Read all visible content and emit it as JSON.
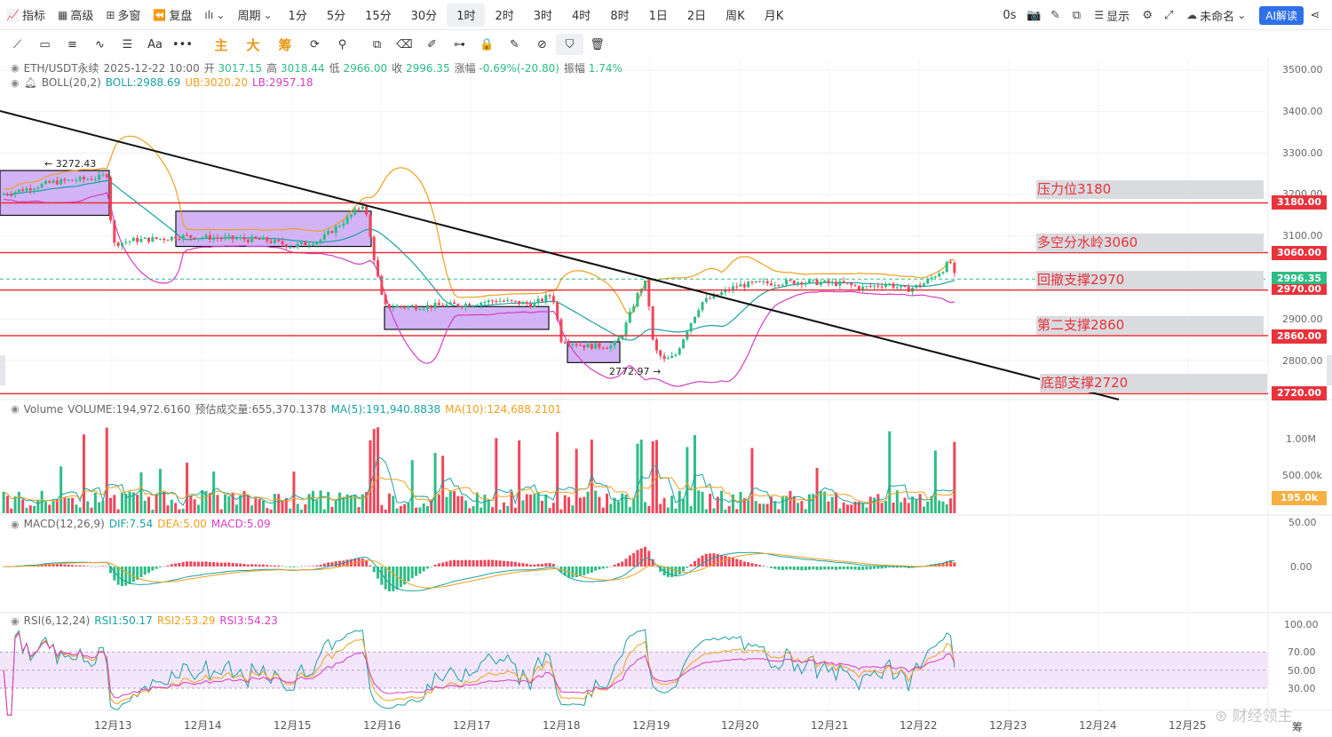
{
  "toolbar": {
    "indicators": "指标",
    "advanced": "高级",
    "multi_window": "多窗",
    "replay": "复盘",
    "period": "周期",
    "timeframes": [
      "1分",
      "5分",
      "15分",
      "30分",
      "1时",
      "2时",
      "3时",
      "4时",
      "8时",
      "1日",
      "2日",
      "周K",
      "月K"
    ],
    "active_timeframe": "1时",
    "countdown": "0s",
    "display": "显示",
    "unnamed": "未命名",
    "ai_button": "AI解读"
  },
  "draw_toolbar": {
    "font_tool": "Aa",
    "more": "•••",
    "main_label": "主",
    "big_label": "大",
    "chip_label": "筹"
  },
  "main_legend": {
    "symbol": "ETH/USDT永续",
    "datetime": "2025-12-22 10:00",
    "open_label": "开",
    "open": "3017.15",
    "high_label": "高",
    "high": "3018.44",
    "low_label": "低",
    "low": "2966.00",
    "close_label": "收",
    "close": "2996.35",
    "change_label": "涨幅",
    "change": "-0.69%(-20.80)",
    "amp_label": "振幅",
    "amp": "1.74%"
  },
  "boll_legend": {
    "name": "BOLL(20,2)",
    "boll": "BOLL:2988.69",
    "ub": "UB:3020.20",
    "lb": "LB:2957.18"
  },
  "volume_legend": {
    "name": "Volume",
    "volume": "VOLUME:194,972.6160",
    "est": "预估成交量:655,370.1378",
    "ma5": "MA(5):191,940.8838",
    "ma10": "MA(10):124,688.2101"
  },
  "macd_legend": {
    "name": "MACD(12,26,9)",
    "dif": "DIF:7.54",
    "dea": "DEA:5.00",
    "macd": "MACD:5.09"
  },
  "rsi_legend": {
    "name": "RSI(6,12,24)",
    "rsi1": "RSI1:50.17",
    "rsi2": "RSI2:53.29",
    "rsi3": "RSI3:54.23"
  },
  "levels": {
    "resistance": "压力位3180",
    "pivot": "多空分水岭3060",
    "pullback": "回撤支撑2970",
    "second": "第二支撑2860",
    "bottom": "底部支撑2720"
  },
  "price_tags": {
    "p3180": "3180.00",
    "p3060": "3060.00",
    "current": "2996.35",
    "p2970": "2970.00",
    "p2860": "2860.00",
    "p2720": "2720.00",
    "vol": "195.0k"
  },
  "price_axis": [
    "3500.00",
    "3400.00",
    "3300.00",
    "3200.00",
    "3100.00",
    "2900.00",
    "2800.00"
  ],
  "volume_axis": [
    "1.00M",
    "500.00k"
  ],
  "macd_axis": [
    "50.00",
    "0.00"
  ],
  "rsi_axis": [
    "100.00",
    "70.00",
    "50.00",
    "30.00"
  ],
  "dates": [
    "12月13",
    "12月14",
    "12月15",
    "12月16",
    "12月17",
    "12月18",
    "12月19",
    "12月20",
    "12月21",
    "12月22",
    "12月23",
    "12月24",
    "12月25"
  ],
  "annotations": {
    "high": "← 3272.43",
    "low": "2772.97 →"
  },
  "watermark": "财经领主",
  "corner": "筹",
  "colors": {
    "up": "#2ebd85",
    "down": "#f0465a",
    "level": "#e8323c",
    "boll_mid": "#1aa2a2",
    "boll_ub": "#f0a01e",
    "boll_lb": "#d63cc3",
    "box": "#c9a6f5",
    "current": "#2ebd85",
    "accent": "#2f6fe8"
  },
  "chart_data": {
    "type": "candlestick",
    "symbol": "ETH/USDT永续",
    "interval": "1时",
    "y_range": [
      2700,
      3520
    ],
    "key_levels": [
      3180,
      3060,
      2970,
      2860,
      2720
    ],
    "current_price": 2996.35,
    "annotated_high": 3272.43,
    "annotated_low": 2772.97,
    "close_path_approx": [
      {
        "x": "12月12 12:00",
        "y": 3200
      },
      {
        "x": "12月12 20:00",
        "y": 3230
      },
      {
        "x": "12月13 02:00",
        "y": 3240
      },
      {
        "x": "12月13 04:00",
        "y": 3080
      },
      {
        "x": "12月13 12:00",
        "y": 3090
      },
      {
        "x": "12月13 18:00",
        "y": 3100
      },
      {
        "x": "12月14 06:00",
        "y": 3095
      },
      {
        "x": "12月14 18:00",
        "y": 3090
      },
      {
        "x": "12月15 06:00",
        "y": 3070
      },
      {
        "x": "12月15 14:00",
        "y": 3130
      },
      {
        "x": "12月15 20:00",
        "y": 3180
      },
      {
        "x": "12月16 02:00",
        "y": 3050
      },
      {
        "x": "12月16 06:00",
        "y": 2920
      },
      {
        "x": "12月16 18:00",
        "y": 2930
      },
      {
        "x": "12月17 10:00",
        "y": 2935
      },
      {
        "x": "12月17 20:00",
        "y": 2945
      },
      {
        "x": "12月18 04:00",
        "y": 2930
      },
      {
        "x": "12月18 08:00",
        "y": 2840
      },
      {
        "x": "12月18 16:00",
        "y": 2830
      },
      {
        "x": "12月18 22:00",
        "y": 2860
      },
      {
        "x": "12月19 02:00",
        "y": 2990
      },
      {
        "x": "12月19 06:00",
        "y": 2830
      },
      {
        "x": "12月19 12:00",
        "y": 2810
      },
      {
        "x": "12月19 16:00",
        "y": 2930
      },
      {
        "x": "12月19 22:00",
        "y": 2960
      },
      {
        "x": "12月20 06:00",
        "y": 2985
      },
      {
        "x": "12月20 16:00",
        "y": 2990
      },
      {
        "x": "12月21 06:00",
        "y": 2980
      },
      {
        "x": "12月21 18:00",
        "y": 2975
      },
      {
        "x": "12月22 02:00",
        "y": 2985
      },
      {
        "x": "12月22 08:00",
        "y": 3030
      },
      {
        "x": "12月22 10:00",
        "y": 2996.35
      }
    ]
  }
}
